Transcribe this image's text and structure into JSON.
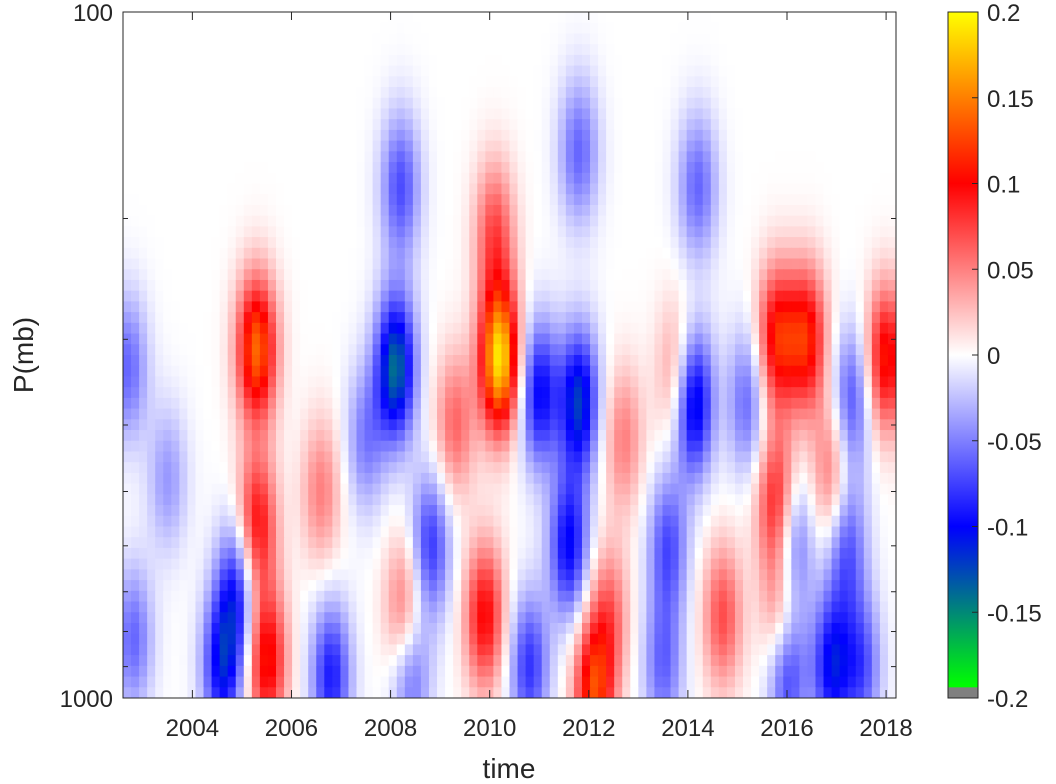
{
  "chart_data": {
    "type": "heatmap",
    "xlabel": "time",
    "ylabel": "P(mb)",
    "xlim": [
      2002.6,
      2018.2
    ],
    "ylim": [
      1000,
      100
    ],
    "yscale": "log",
    "x_ticks": [
      2004,
      2006,
      2008,
      2010,
      2012,
      2014,
      2016,
      2018
    ],
    "x_tick_labels": [
      "2004",
      "2006",
      "2008",
      "2010",
      "2012",
      "2014",
      "2016",
      "2018"
    ],
    "y_ticks": [
      100,
      1000
    ],
    "y_tick_labels": [
      "100",
      "1000"
    ],
    "colorbar": {
      "range": [
        -0.2,
        0.2
      ],
      "ticks": [
        0.2,
        0.15,
        0.1,
        0.05,
        0,
        -0.05,
        -0.1,
        -0.15,
        -0.2
      ],
      "tick_labels": [
        "0.2",
        "0.15",
        "0.1",
        "0.05",
        "0",
        "-0.05",
        "-0.1",
        "-0.15",
        "-0.2"
      ],
      "colormap": [
        "#808080",
        "#00ff00",
        "#0000ff",
        "#ffffff",
        "#ff0000",
        "#ffff00"
      ]
    },
    "features": [
      {
        "x": 2005.3,
        "p": 310,
        "value": 0.14
      },
      {
        "x": 2005.3,
        "p": 560,
        "value": 0.1
      },
      {
        "x": 2005.5,
        "p": 880,
        "value": 0.11
      },
      {
        "x": 2004.6,
        "p": 900,
        "value": -0.1
      },
      {
        "x": 2004.9,
        "p": 700,
        "value": -0.09
      },
      {
        "x": 2006.8,
        "p": 930,
        "value": -0.09
      },
      {
        "x": 2008.1,
        "p": 330,
        "value": -0.14
      },
      {
        "x": 2008.2,
        "p": 180,
        "value": -0.07
      },
      {
        "x": 2008.4,
        "p": 900,
        "value": -0.08
      },
      {
        "x": 2008.8,
        "p": 600,
        "value": -0.08
      },
      {
        "x": 2008.3,
        "p": 760,
        "value": 0.08
      },
      {
        "x": 2010.2,
        "p": 320,
        "value": 0.19
      },
      {
        "x": 2010.1,
        "p": 210,
        "value": 0.07
      },
      {
        "x": 2009.9,
        "p": 760,
        "value": 0.1
      },
      {
        "x": 2010.8,
        "p": 900,
        "value": -0.08
      },
      {
        "x": 2011.0,
        "p": 360,
        "value": -0.1
      },
      {
        "x": 2011.8,
        "p": 370,
        "value": -0.12
      },
      {
        "x": 2011.8,
        "p": 160,
        "value": -0.06
      },
      {
        "x": 2011.6,
        "p": 600,
        "value": -0.1
      },
      {
        "x": 2012.1,
        "p": 980,
        "value": 0.12
      },
      {
        "x": 2012.4,
        "p": 760,
        "value": 0.06
      },
      {
        "x": 2013.8,
        "p": 340,
        "value": 0.06
      },
      {
        "x": 2013.6,
        "p": 600,
        "value": -0.07
      },
      {
        "x": 2013.5,
        "p": 900,
        "value": -0.06
      },
      {
        "x": 2014.1,
        "p": 370,
        "value": -0.13
      },
      {
        "x": 2014.2,
        "p": 180,
        "value": -0.06
      },
      {
        "x": 2014.7,
        "p": 760,
        "value": 0.07
      },
      {
        "x": 2015.2,
        "p": 370,
        "value": -0.06
      },
      {
        "x": 2015.8,
        "p": 300,
        "value": 0.11
      },
      {
        "x": 2015.8,
        "p": 520,
        "value": 0.1
      },
      {
        "x": 2015.9,
        "p": 760,
        "value": 0.08
      },
      {
        "x": 2016.0,
        "p": 900,
        "value": -0.1
      },
      {
        "x": 2016.1,
        "p": 600,
        "value": -0.08
      },
      {
        "x": 2016.4,
        "p": 300,
        "value": 0.11
      },
      {
        "x": 2016.9,
        "p": 900,
        "value": -0.1
      },
      {
        "x": 2016.9,
        "p": 470,
        "value": 0.06
      },
      {
        "x": 2017.2,
        "p": 600,
        "value": -0.07
      },
      {
        "x": 2017.3,
        "p": 370,
        "value": -0.07
      },
      {
        "x": 2017.5,
        "p": 900,
        "value": -0.07
      },
      {
        "x": 2018.0,
        "p": 320,
        "value": 0.11
      },
      {
        "x": 2002.7,
        "p": 330,
        "value": -0.06
      },
      {
        "x": 2002.8,
        "p": 820,
        "value": -0.06
      },
      {
        "x": 2003.5,
        "p": 480,
        "value": -0.04
      },
      {
        "x": 2006.6,
        "p": 500,
        "value": 0.05
      },
      {
        "x": 2007.5,
        "p": 420,
        "value": -0.05
      },
      {
        "x": 2009.3,
        "p": 400,
        "value": 0.06
      },
      {
        "x": 2012.7,
        "p": 420,
        "value": 0.05
      }
    ]
  }
}
